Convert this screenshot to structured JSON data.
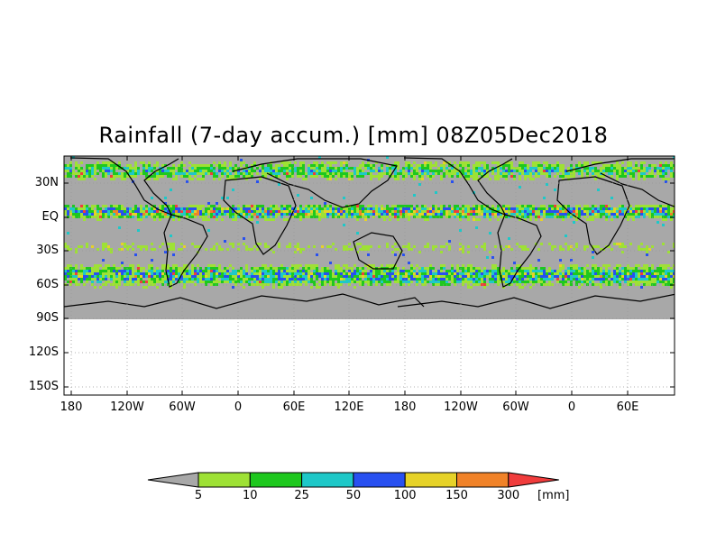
{
  "title": "Rainfall (7-day accum.) [mm] 08Z05Dec2018",
  "y_ticks": [
    "30N",
    "EQ",
    "30S",
    "60S",
    "90S",
    "120S",
    "150S"
  ],
  "x_ticks": [
    "180",
    "120W",
    "60W",
    "0",
    "60E",
    "120E",
    "180",
    "120W",
    "60W",
    "0",
    "60E"
  ],
  "legend": {
    "levels": [
      "5",
      "10",
      "25",
      "50",
      "100",
      "150",
      "300"
    ],
    "unit": "[mm]",
    "colors": [
      "#a8a8a8",
      "#9ee135",
      "#1ec81e",
      "#1ec8c8",
      "#2850f0",
      "#e6d228",
      "#f08228",
      "#f03c3c"
    ]
  },
  "colors": {
    "ocean_dry": "#a8a8a8",
    "no_data": "#ffffff",
    "coastline": "#000000",
    "grid": "#888888"
  }
}
